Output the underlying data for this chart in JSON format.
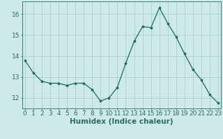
{
  "x": [
    0,
    1,
    2,
    3,
    4,
    5,
    6,
    7,
    8,
    9,
    10,
    11,
    12,
    13,
    14,
    15,
    16,
    17,
    18,
    19,
    20,
    21,
    22,
    23
  ],
  "y": [
    13.8,
    13.2,
    12.8,
    12.7,
    12.7,
    12.6,
    12.7,
    12.7,
    12.4,
    11.85,
    12.0,
    12.5,
    13.65,
    14.7,
    15.4,
    15.35,
    16.3,
    15.55,
    14.9,
    14.1,
    13.35,
    12.85,
    12.15,
    11.75
  ],
  "line_color": "#1a6b5a",
  "marker": "o",
  "marker_size": 2.2,
  "bg_color": "#ceeae8",
  "grid_color": "#aed4d0",
  "axis_color": "#2d6b60",
  "xlabel": "Humidex (Indice chaleur)",
  "xlabel_fontsize": 7.5,
  "tick_fontsize": 6.5,
  "ylim": [
    11.5,
    16.6
  ],
  "yticks": [
    12,
    13,
    14,
    15,
    16
  ],
  "xticks": [
    0,
    1,
    2,
    3,
    4,
    5,
    6,
    7,
    8,
    9,
    10,
    11,
    12,
    13,
    14,
    15,
    16,
    17,
    18,
    19,
    20,
    21,
    22,
    23
  ],
  "xlim": [
    -0.3,
    23.3
  ]
}
